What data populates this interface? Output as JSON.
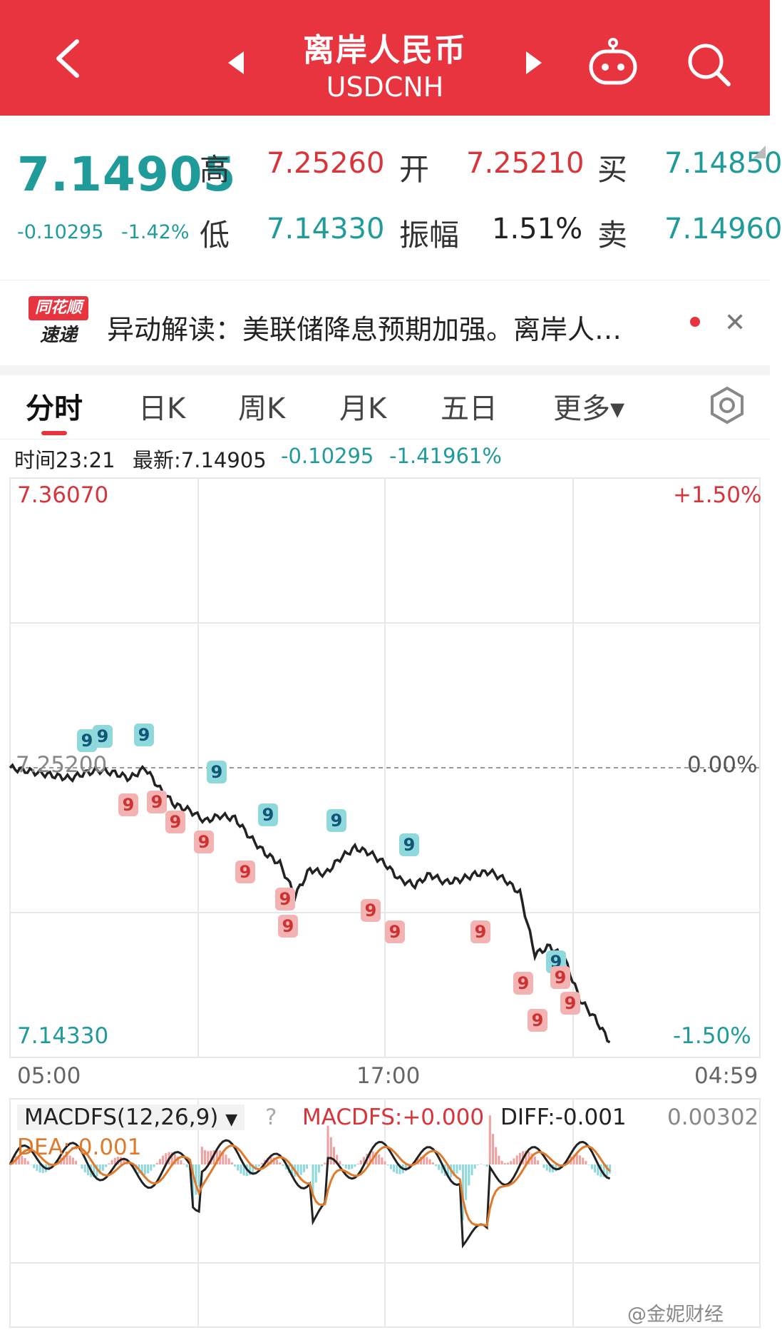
{
  "header": {
    "title": "离岸人民币",
    "subtitle": "USDCNH",
    "back_icon": "chevron-left-icon",
    "prev_icon": "triangle-left-icon",
    "next_icon": "triangle-right-icon",
    "robot_icon": "robot-icon",
    "search_icon": "search-icon"
  },
  "quote": {
    "price": "7.14905",
    "change": "-0.10295",
    "change_pct": "-1.42%",
    "high_label": "高",
    "high": "7.25260",
    "open_label": "开",
    "open": "7.25210",
    "buy_label": "买",
    "buy": "7.14850",
    "low_label": "低",
    "low": "7.14330",
    "amplitude_label": "振幅",
    "amplitude": "1.51%",
    "sell_label": "卖",
    "sell": "7.14960"
  },
  "news": {
    "logo_top": "同花顺",
    "logo_bottom": "速递",
    "text": "异动解读：美联储降息预期加强。离岸人…"
  },
  "tabs": [
    {
      "label": "分时"
    },
    {
      "label": "日K"
    },
    {
      "label": "周K"
    },
    {
      "label": "月K"
    },
    {
      "label": "五日"
    },
    {
      "label": "更多▾"
    }
  ],
  "info": {
    "time": "时间23:21",
    "latest": "最新:7.14905",
    "change": "-0.10295",
    "change_pct": "-1.41961%"
  },
  "chart_axis": {
    "top_price": "7.36070",
    "top_pct": "+1.50%",
    "mid_price": "7.25200",
    "mid_pct": "0.00%",
    "bottom_price": "7.14330",
    "bottom_pct": "-1.50%",
    "x_start": "05:00",
    "x_mid": "17:00",
    "x_end": "04:59"
  },
  "macd": {
    "name": "MACDFS(12,26,9)",
    "macdfs": "MACDFS:+0.000",
    "diff": "DIFF:-0.001",
    "dea": "DEA:-0.001",
    "max": "0.00302"
  },
  "watermark": "@金妮财经",
  "colors": {
    "header_red": "#e8343e",
    "up_red": "#d8343a",
    "down_teal": "#1f9b9a"
  },
  "chart_data": {
    "type": "line",
    "x_range": [
      "05:00",
      "04:59"
    ],
    "ylim": [
      7.1433,
      7.3607
    ],
    "reference": 7.252,
    "series": [
      {
        "x_frac": [
          0,
          0.02,
          0.04,
          0.06,
          0.08,
          0.1,
          0.12,
          0.14,
          0.16,
          0.18,
          0.2,
          0.22,
          0.24,
          0.26,
          0.28,
          0.3,
          0.32,
          0.34,
          0.36,
          0.38,
          0.4,
          0.42,
          0.44,
          0.46,
          0.48,
          0.5,
          0.52,
          0.54,
          0.56,
          0.58,
          0.6,
          0.62,
          0.64,
          0.66,
          0.68,
          0.7,
          0.72,
          0.74,
          0.76,
          0.78,
          0.8
        ],
        "values": [
          7.252,
          7.251,
          7.25,
          7.249,
          7.248,
          7.25,
          7.251,
          7.25,
          7.248,
          7.252,
          7.244,
          7.238,
          7.236,
          7.232,
          7.234,
          7.233,
          7.226,
          7.22,
          7.216,
          7.204,
          7.214,
          7.212,
          7.218,
          7.222,
          7.22,
          7.216,
          7.21,
          7.208,
          7.212,
          7.209,
          7.21,
          7.212,
          7.213,
          7.21,
          7.205,
          7.182,
          7.185,
          7.18,
          7.165,
          7.158,
          7.149
        ]
      }
    ]
  }
}
